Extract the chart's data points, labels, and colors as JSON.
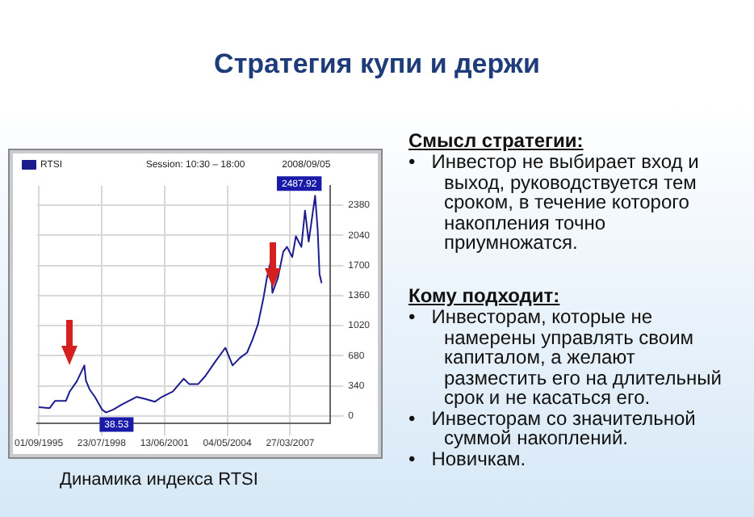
{
  "chart_data": [
    {
      "type": "line",
      "title": "Стратегия купи и держи",
      "annotations": [
        "Session: 10:30 – 18:00",
        "2008/09/05",
        "Динамика индекса RTSI",
        {
          "text": "38.53",
          "x": "1998-10-05",
          "y": 38.53
        },
        {
          "text": "2487.92",
          "x": "2008-05-19",
          "y": 2487.92
        }
      ],
      "series": [
        {
          "name": "RTSI",
          "color": "#1c1c8c",
          "x": [
            "1995-09-01",
            "1996-03",
            "1996-06",
            "1996-12",
            "1997-02",
            "1997-06",
            "1997-10-06",
            "1997-11",
            "1998-01",
            "1998-04",
            "1998-08",
            "1998-10-05",
            "1999-02",
            "1999-07",
            "2000-03",
            "2000-08",
            "2001-01",
            "2001-05",
            "2001-11",
            "2002-05",
            "2002-08",
            "2003-01",
            "2003-05",
            "2003-10",
            "2004-04",
            "2004-08",
            "2004-12",
            "2005-04",
            "2005-07",
            "2005-10",
            "2006-01",
            "2006-03",
            "2006-05",
            "2006-06",
            "2006-09",
            "2006-12",
            "2007-02",
            "2007-05",
            "2007-07",
            "2007-10",
            "2007-12",
            "2008-02",
            "2008-05-19",
            "2008-07",
            "2008-08",
            "2008-09-05"
          ],
          "values": [
            100,
            88,
            170,
            170,
            275,
            390,
            570,
            400,
            300,
            215,
            70,
            38.53,
            70,
            130,
            215,
            190,
            160,
            215,
            275,
            420,
            360,
            360,
            450,
            600,
            770,
            570,
            655,
            715,
            860,
            1035,
            1330,
            1560,
            1740,
            1390,
            1560,
            1855,
            1910,
            1795,
            2030,
            1910,
            2320,
            1970,
            2487.92,
            2100,
            1600,
            1500
          ]
        }
      ],
      "xlim": [
        "1995-08-01",
        "2009-01-31"
      ],
      "xticks": [
        {
          "value": "1995-09-01",
          "label": "01/09/1995"
        },
        {
          "value": "1998-07-23",
          "label": "23/07/1998"
        },
        {
          "value": "2001-06-13",
          "label": "13/06/2001"
        },
        {
          "value": "2004-05-04",
          "label": "04/05/2004"
        },
        {
          "value": "2007-03-27",
          "label": "27/03/2007"
        }
      ],
      "ylim": [
        -80,
        2600
      ],
      "yticks": [
        0,
        340,
        680,
        1020,
        1360,
        1700,
        2040,
        2380
      ],
      "grid": true,
      "legend": "top left",
      "marker": "none",
      "line_style": "solid"
    },
    {
      "type": "other",
      "title": "Смысл стратегии:",
      "annotations": [
        "•   Инвестор не выбирает вход и выход, руководствуется тем сроком, в течение которого накопления точно приумножатся."
      ]
    },
    {
      "type": "other",
      "title": "Кому подходит:",
      "annotations": [
        "•   Инвесторам, которые не намерены управлять своим капиталом, а желают разместить его на длительный срок и не касаться его.",
        "•   Инвесторам со значительной суммой накоплений.",
        "•   Новичкам."
      ]
    }
  ]
}
